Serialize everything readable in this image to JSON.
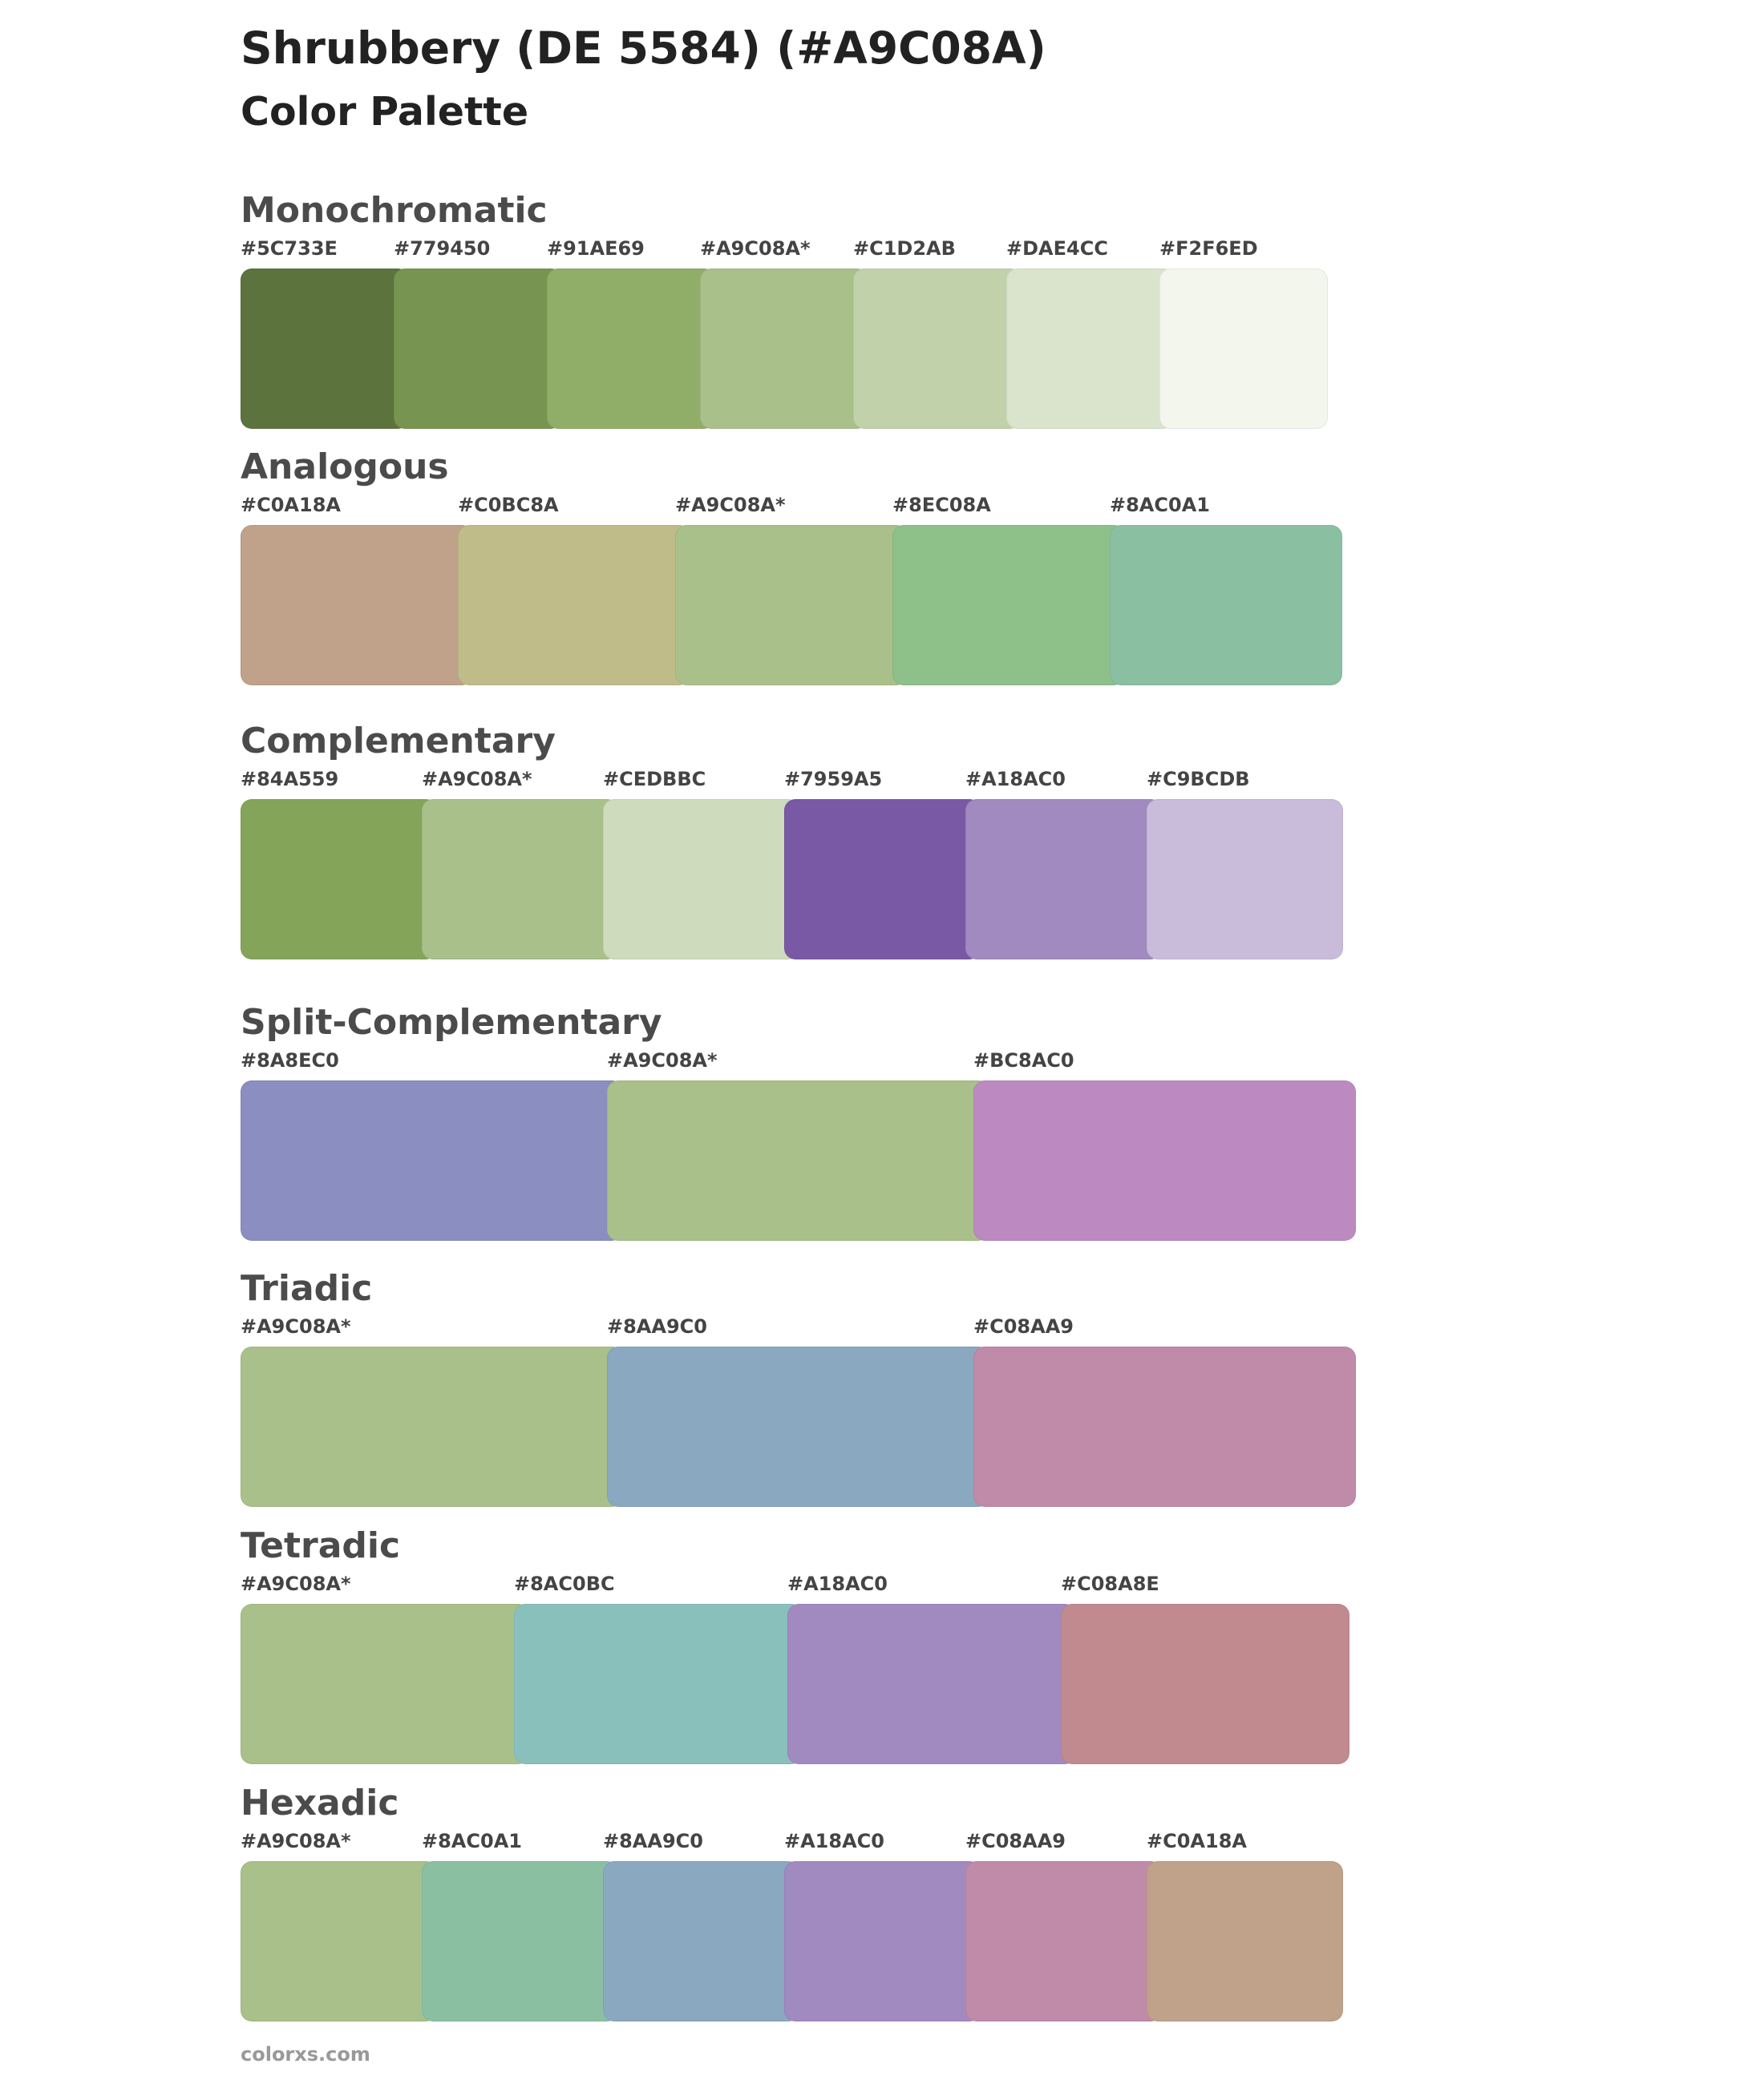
{
  "header": {
    "title": "Shrubbery (DE 5584) (#A9C08A)",
    "subtitle": "Color Palette"
  },
  "sections": [
    {
      "title": "Monochromatic",
      "swatches": [
        {
          "label": "#5C733E",
          "color": "#5C733E"
        },
        {
          "label": "#779450",
          "color": "#779450"
        },
        {
          "label": "#91AE69",
          "color": "#91AE69"
        },
        {
          "label": "#A9C08A*",
          "color": "#A9C08A"
        },
        {
          "label": "#C1D2AB",
          "color": "#C1D2AB"
        },
        {
          "label": "#DAE4CC",
          "color": "#DAE4CC"
        },
        {
          "label": "#F2F6ED",
          "color": "#F2F6ED"
        }
      ]
    },
    {
      "title": "Analogous",
      "swatches": [
        {
          "label": "#C0A18A",
          "color": "#C0A18A"
        },
        {
          "label": "#C0BC8A",
          "color": "#C0BC8A"
        },
        {
          "label": "#A9C08A*",
          "color": "#A9C08A"
        },
        {
          "label": "#8EC08A",
          "color": "#8EC08A"
        },
        {
          "label": "#8AC0A1",
          "color": "#8AC0A1"
        }
      ]
    },
    {
      "title": "Complementary",
      "swatches": [
        {
          "label": "#84A559",
          "color": "#84A559"
        },
        {
          "label": "#A9C08A*",
          "color": "#A9C08A"
        },
        {
          "label": "#CEDBBC",
          "color": "#CEDBBC"
        },
        {
          "label": "#7959A5",
          "color": "#7959A5"
        },
        {
          "label": "#A18AC0",
          "color": "#A18AC0"
        },
        {
          "label": "#C9BCDB",
          "color": "#C9BCDB"
        }
      ]
    },
    {
      "title": "Split-Complementary",
      "swatches": [
        {
          "label": "#8A8EC0",
          "color": "#8A8EC0"
        },
        {
          "label": "#A9C08A*",
          "color": "#A9C08A"
        },
        {
          "label": "#BC8AC0",
          "color": "#BC8AC0"
        }
      ]
    },
    {
      "title": "Triadic",
      "swatches": [
        {
          "label": "#A9C08A*",
          "color": "#A9C08A"
        },
        {
          "label": "#8AA9C0",
          "color": "#8AA9C0"
        },
        {
          "label": "#C08AA9",
          "color": "#C08AA9"
        }
      ]
    },
    {
      "title": "Tetradic",
      "swatches": [
        {
          "label": "#A9C08A*",
          "color": "#A9C08A"
        },
        {
          "label": "#8AC0BC",
          "color": "#8AC0BC"
        },
        {
          "label": "#A18AC0",
          "color": "#A18AC0"
        },
        {
          "label": "#C08A8E",
          "color": "#C08A8E"
        }
      ]
    },
    {
      "title": "Hexadic",
      "swatches": [
        {
          "label": "#A9C08A*",
          "color": "#A9C08A"
        },
        {
          "label": "#8AC0A1",
          "color": "#8AC0A1"
        },
        {
          "label": "#8AA9C0",
          "color": "#8AA9C0"
        },
        {
          "label": "#A18AC0",
          "color": "#A18AC0"
        },
        {
          "label": "#C08AA9",
          "color": "#C08AA9"
        },
        {
          "label": "#C0A18A",
          "color": "#C0A18A"
        }
      ]
    }
  ],
  "footer": {
    "text": "colorxs.com"
  }
}
